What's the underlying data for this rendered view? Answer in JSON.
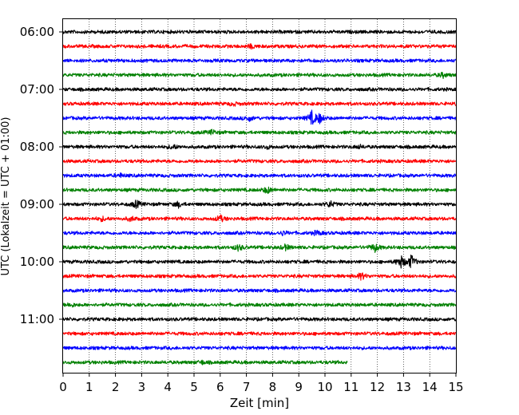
{
  "chart_data": {
    "type": "line",
    "title": "",
    "xlabel": "Zeit  [min]",
    "ylabel": "UTC (Lokalzeit = UTC + 01:00)",
    "xlim": [
      0,
      15
    ],
    "x_ticks": [
      "0",
      "1",
      "2",
      "3",
      "4",
      "5",
      "6",
      "7",
      "8",
      "9",
      "10",
      "11",
      "12",
      "13",
      "14",
      "15"
    ],
    "y_tick_labels": [
      "06:00",
      "07:00",
      "08:00",
      "09:00",
      "10:00",
      "11:00"
    ],
    "y_tick_rows": [
      0,
      4,
      8,
      12,
      16,
      20
    ],
    "grid": "vertical dotted",
    "trace_minutes": 15,
    "color_cycle": [
      "#000000",
      "#ff0000",
      "#0000ff",
      "#008000"
    ],
    "traces": [
      {
        "start": "06:00",
        "end_minute": 15,
        "color": "#000000",
        "events": []
      },
      {
        "start": "06:15",
        "end_minute": 15,
        "color": "#ff0000",
        "events": [
          {
            "t": 7.2,
            "amp": 0.25
          }
        ]
      },
      {
        "start": "06:30",
        "end_minute": 15,
        "color": "#0000ff",
        "events": []
      },
      {
        "start": "06:45",
        "end_minute": 15,
        "color": "#008000",
        "events": [
          {
            "t": 14.5,
            "amp": 0.3
          }
        ]
      },
      {
        "start": "07:00",
        "end_minute": 15,
        "color": "#000000",
        "events": []
      },
      {
        "start": "07:15",
        "end_minute": 15,
        "color": "#ff0000",
        "events": [
          {
            "t": 6.5,
            "amp": 0.2
          }
        ]
      },
      {
        "start": "07:30",
        "end_minute": 15,
        "color": "#0000ff",
        "events": [
          {
            "t": 7.1,
            "amp": 0.35
          },
          {
            "t": 9.5,
            "amp": 0.9
          },
          {
            "t": 9.8,
            "amp": 0.6
          }
        ]
      },
      {
        "start": "07:45",
        "end_minute": 15,
        "color": "#008000",
        "events": [
          {
            "t": 5.7,
            "amp": 0.3
          }
        ]
      },
      {
        "start": "08:00",
        "end_minute": 15,
        "color": "#000000",
        "events": [
          {
            "t": 4.2,
            "amp": 0.3
          },
          {
            "t": 7.8,
            "amp": 0.2
          },
          {
            "t": 11.3,
            "amp": 0.2
          }
        ]
      },
      {
        "start": "08:15",
        "end_minute": 15,
        "color": "#ff0000",
        "events": []
      },
      {
        "start": "08:30",
        "end_minute": 15,
        "color": "#0000ff",
        "events": [
          {
            "t": 2.2,
            "amp": 0.2
          }
        ]
      },
      {
        "start": "08:45",
        "end_minute": 15,
        "color": "#008000",
        "events": [
          {
            "t": 7.8,
            "amp": 0.45
          }
        ]
      },
      {
        "start": "09:00",
        "end_minute": 15,
        "color": "#000000",
        "events": [
          {
            "t": 2.8,
            "amp": 0.5
          },
          {
            "t": 4.4,
            "amp": 0.35
          },
          {
            "t": 10.2,
            "amp": 0.4
          }
        ]
      },
      {
        "start": "09:15",
        "end_minute": 15,
        "color": "#ff0000",
        "events": [
          {
            "t": 1.5,
            "amp": 0.25
          },
          {
            "t": 2.6,
            "amp": 0.3
          },
          {
            "t": 6.0,
            "amp": 0.45
          }
        ]
      },
      {
        "start": "09:30",
        "end_minute": 15,
        "color": "#0000ff",
        "events": [
          {
            "t": 8.4,
            "amp": 0.25
          },
          {
            "t": 9.7,
            "amp": 0.3
          }
        ]
      },
      {
        "start": "09:45",
        "end_minute": 15,
        "color": "#008000",
        "events": [
          {
            "t": 6.7,
            "amp": 0.4
          },
          {
            "t": 8.5,
            "amp": 0.35
          },
          {
            "t": 11.9,
            "amp": 0.55
          }
        ]
      },
      {
        "start": "10:00",
        "end_minute": 15,
        "color": "#000000",
        "events": [
          {
            "t": 12.9,
            "amp": 0.8
          },
          {
            "t": 13.3,
            "amp": 0.9
          }
        ]
      },
      {
        "start": "10:15",
        "end_minute": 15,
        "color": "#ff0000",
        "events": [
          {
            "t": 11.4,
            "amp": 0.45
          }
        ]
      },
      {
        "start": "10:30",
        "end_minute": 15,
        "color": "#0000ff",
        "events": []
      },
      {
        "start": "10:45",
        "end_minute": 15,
        "color": "#008000",
        "events": [
          {
            "t": 0.3,
            "amp": 0.25
          }
        ]
      },
      {
        "start": "11:00",
        "end_minute": 15,
        "color": "#000000",
        "events": []
      },
      {
        "start": "11:15",
        "end_minute": 15,
        "color": "#ff0000",
        "events": []
      },
      {
        "start": "11:30",
        "end_minute": 15,
        "color": "#0000ff",
        "events": []
      },
      {
        "start": "11:45",
        "end_minute": 10.85,
        "color": "#008000",
        "events": [
          {
            "t": 5.3,
            "amp": 0.2
          }
        ]
      }
    ]
  }
}
